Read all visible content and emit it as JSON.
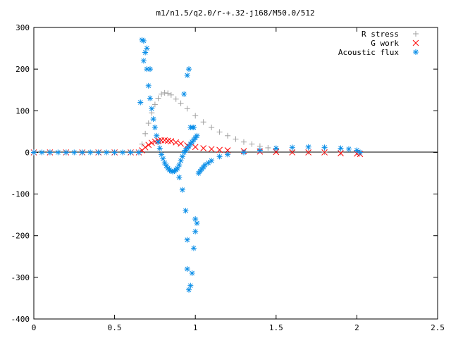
{
  "chart_data": {
    "type": "scatter",
    "title": "m1/n1.5/q2.0/r-+.32-j168/M50.0/512",
    "xlabel": "",
    "ylabel": "",
    "xlim": [
      0,
      2.5
    ],
    "ylim": [
      -400,
      300
    ],
    "grid": false,
    "legend_position": "top-right",
    "x_ticks": [
      0,
      0.5,
      1,
      1.5,
      2,
      2.5
    ],
    "x_tick_labels": [
      "0",
      "0.5",
      "1",
      "1.5",
      "2",
      "2.5"
    ],
    "y_ticks": [
      -400,
      -300,
      -200,
      -100,
      0,
      100,
      200,
      300
    ],
    "y_tick_labels": [
      "-400",
      "-300",
      "-200",
      "-100",
      "0",
      "100",
      "200",
      "300"
    ],
    "series": [
      {
        "name": "R stress",
        "marker": "+",
        "color": "#a0a0a0",
        "x": [
          0,
          0.1,
          0.2,
          0.3,
          0.4,
          0.5,
          0.6,
          0.65,
          0.67,
          0.69,
          0.71,
          0.73,
          0.75,
          0.77,
          0.79,
          0.81,
          0.83,
          0.85,
          0.88,
          0.91,
          0.95,
          1.0,
          1.05,
          1.1,
          1.15,
          1.2,
          1.25,
          1.3,
          1.35,
          1.4,
          1.45,
          1.5,
          1.6,
          1.7,
          1.8,
          1.9,
          2.0,
          2.02
        ],
        "y": [
          0,
          0,
          0,
          0,
          0,
          0,
          0,
          0,
          20,
          45,
          70,
          95,
          115,
          130,
          140,
          143,
          142,
          138,
          128,
          118,
          105,
          88,
          73,
          60,
          49,
          40,
          32,
          25,
          20,
          15,
          11,
          8,
          4,
          2,
          1,
          0,
          0,
          0
        ]
      },
      {
        "name": "G work",
        "marker": "x",
        "color": "#ff0000",
        "x": [
          0,
          0.1,
          0.2,
          0.3,
          0.4,
          0.5,
          0.6,
          0.65,
          0.67,
          0.69,
          0.71,
          0.73,
          0.75,
          0.77,
          0.79,
          0.81,
          0.83,
          0.85,
          0.88,
          0.91,
          0.95,
          1.0,
          1.05,
          1.1,
          1.15,
          1.2,
          1.3,
          1.4,
          1.5,
          1.6,
          1.7,
          1.8,
          1.9,
          2.0,
          2.02
        ],
        "y": [
          0,
          0,
          0,
          0,
          0,
          0,
          0,
          0,
          5,
          12,
          18,
          23,
          26,
          28,
          29,
          29,
          28,
          27,
          24,
          21,
          17,
          13,
          10,
          8,
          6,
          5,
          3,
          2,
          1,
          0,
          0,
          0,
          -2,
          -3,
          -4
        ]
      },
      {
        "name": "Acoustic flux",
        "marker": "*",
        "color": "#0a8ee8",
        "x": [
          0,
          0.05,
          0.1,
          0.15,
          0.2,
          0.25,
          0.3,
          0.35,
          0.4,
          0.45,
          0.5,
          0.55,
          0.6,
          0.65,
          0.66,
          0.67,
          0.68,
          0.69,
          0.7,
          0.71,
          0.72,
          0.73,
          0.74,
          0.75,
          0.76,
          0.77,
          0.78,
          0.79,
          0.8,
          0.81,
          0.82,
          0.83,
          0.84,
          0.85,
          0.86,
          0.87,
          0.88,
          0.89,
          0.9,
          0.91,
          0.92,
          0.93,
          0.94,
          0.95,
          0.96,
          0.97,
          0.98,
          0.99,
          1.0,
          1.01,
          1.02,
          1.03,
          1.04,
          1.05,
          1.06,
          1.08,
          1.1,
          1.15,
          1.2,
          1.3,
          1.4,
          1.5,
          1.6,
          1.7,
          1.8,
          1.9,
          1.95,
          2.0,
          2.02,
          0.68,
          0.7,
          0.72,
          0.9,
          0.92,
          0.94,
          0.95,
          0.95,
          0.96,
          0.97,
          0.98,
          0.99,
          1.0,
          1.0,
          1.01,
          0.93,
          0.96,
          0.98,
          0.99,
          0.95,
          0.97,
          0.99
        ],
        "y": [
          0,
          0,
          0,
          0,
          0,
          0,
          0,
          0,
          0,
          0,
          0,
          0,
          0,
          0,
          120,
          270,
          268,
          240,
          200,
          160,
          130,
          105,
          80,
          60,
          40,
          25,
          10,
          -5,
          -15,
          -25,
          -32,
          -38,
          -42,
          -45,
          -46,
          -45,
          -42,
          -38,
          -30,
          -20,
          -10,
          0,
          5,
          10,
          15,
          20,
          25,
          30,
          35,
          40,
          -50,
          -45,
          -40,
          -35,
          -30,
          -25,
          -20,
          -10,
          -5,
          0,
          5,
          10,
          12,
          13,
          12,
          10,
          8,
          5,
          0,
          220,
          250,
          200,
          -60,
          -90,
          -140,
          -210,
          -280,
          -330,
          -320,
          -290,
          -230,
          -190,
          -160,
          -170,
          140,
          200,
          60,
          60,
          185,
          60,
          60
        ]
      }
    ]
  }
}
